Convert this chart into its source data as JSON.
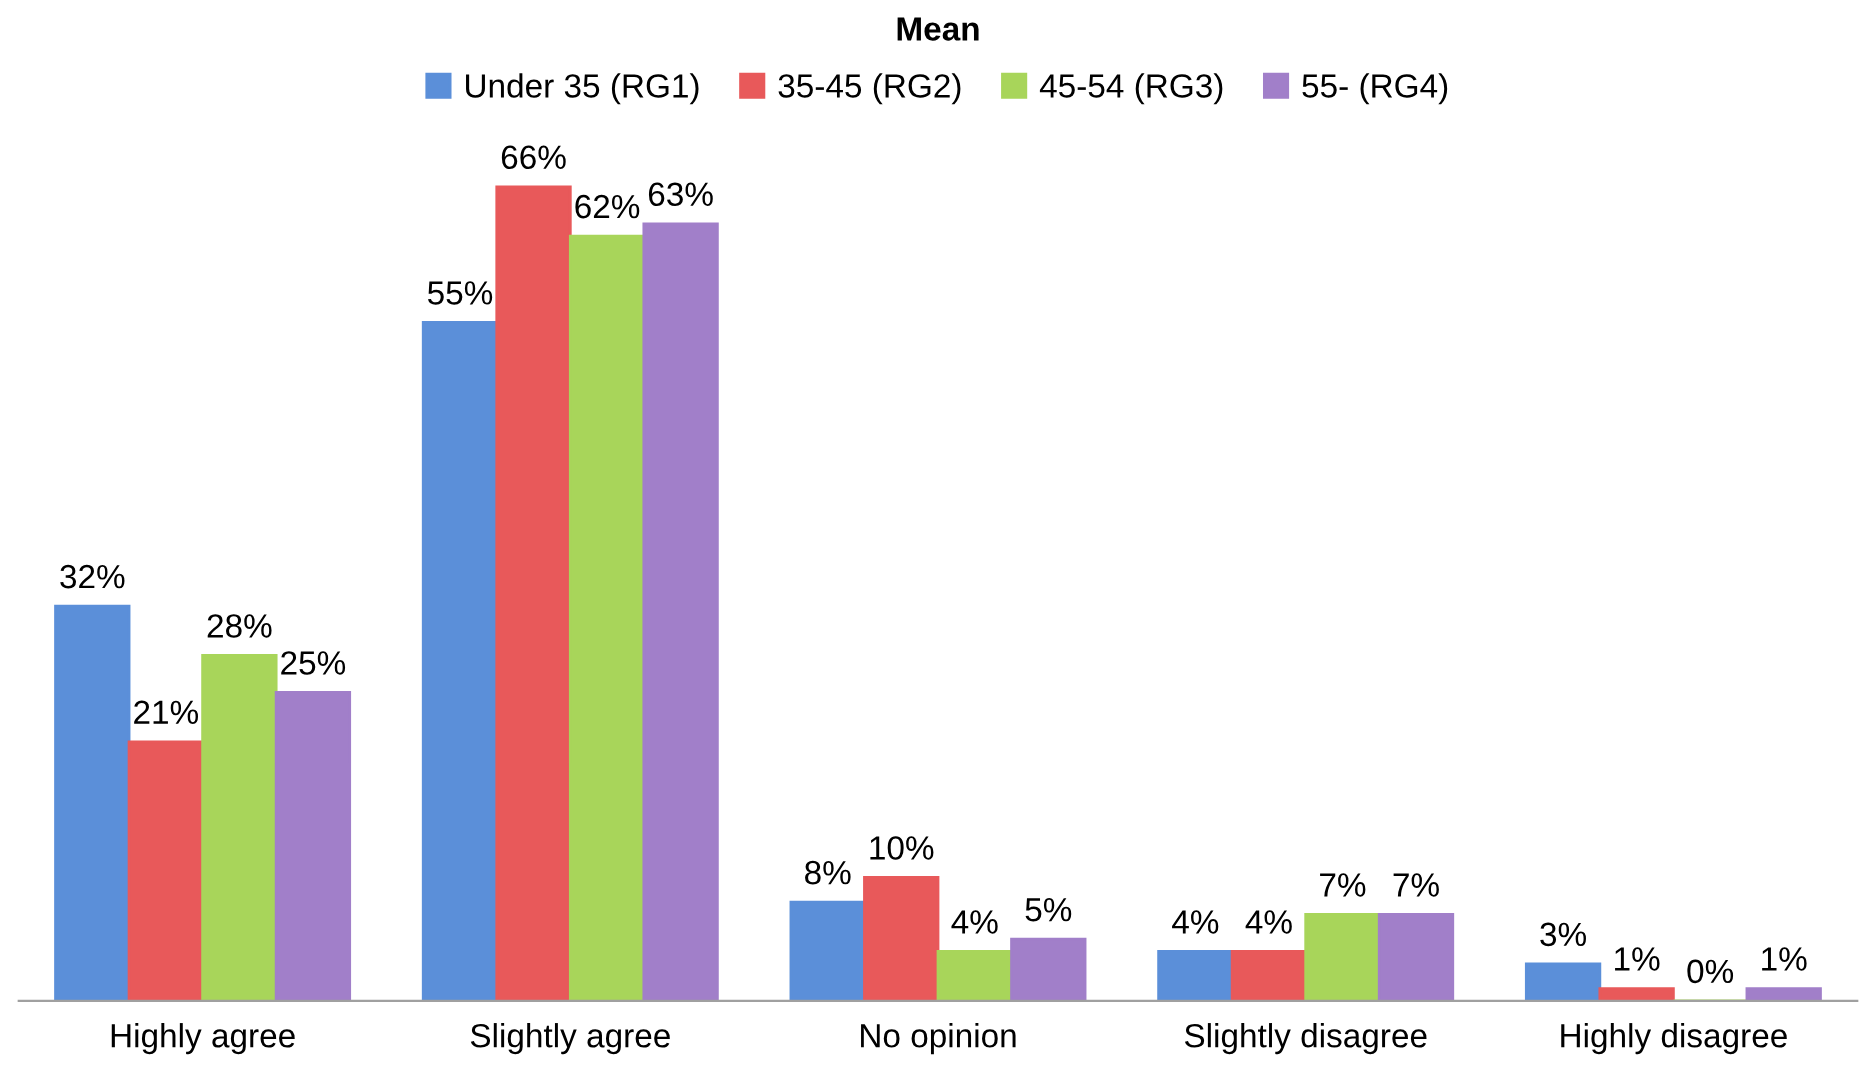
{
  "chart_data": {
    "type": "bar",
    "title": "Mean",
    "categories": [
      "Highly agree",
      "Slightly agree",
      "No opinion",
      "Slightly disagree",
      "Highly disagree"
    ],
    "series": [
      {
        "name": "Under 35 (RG1)",
        "color": "#5b8fd9",
        "values": [
          32,
          55,
          8,
          4,
          3
        ],
        "value_labels": [
          "32%",
          "55%",
          "8%",
          "4%",
          "3%"
        ]
      },
      {
        "name": "35-45 (RG2)",
        "color": "#e8595a",
        "values": [
          21,
          66,
          10,
          4,
          1
        ],
        "value_labels": [
          "21%",
          "66%",
          "10%",
          "4%",
          "1%"
        ]
      },
      {
        "name": "45-54 (RG3)",
        "color": "#a8d55a",
        "values": [
          28,
          62,
          4,
          7,
          0
        ],
        "value_labels": [
          "28%",
          "62%",
          "4%",
          "7%",
          "0%"
        ]
      },
      {
        "name": "55- (RG4)",
        "color": "#a17fc9",
        "values": [
          25,
          63,
          5,
          7,
          1
        ],
        "value_labels": [
          "25%",
          "63%",
          "5%",
          "7%",
          "1%"
        ]
      }
    ],
    "legend": "top",
    "grid": false
  }
}
